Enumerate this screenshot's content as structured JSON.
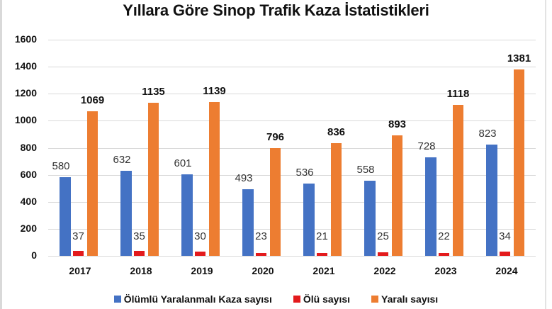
{
  "title": "Yıllara Göre Sinop Trafik Kaza İstatistikleri",
  "colors": {
    "blue": "#4472C4",
    "red": "#E31A1C",
    "orange": "#ED7D31"
  },
  "y_ticks": [
    "1600",
    "1400",
    "1200",
    "1000",
    "800",
    "600",
    "400",
    "200",
    "0"
  ],
  "categories": [
    "2017",
    "2018",
    "2019",
    "2020",
    "2021",
    "2022",
    "2023",
    "2024"
  ],
  "legend": [
    {
      "label": "Ölümlü Yaralanmalı Kaza sayısı",
      "color": "#4472C4"
    },
    {
      "label": "Ölü sayısı",
      "color": "#E31A1C"
    },
    {
      "label": "Yaralı sayısı",
      "color": "#ED7D31"
    }
  ],
  "chart_data": {
    "type": "bar",
    "title": "Yıllara Göre Sinop Trafik Kaza İstatistikleri",
    "xlabel": "",
    "ylabel": "",
    "ylim": [
      0,
      1600
    ],
    "y_ticks": [
      0,
      200,
      400,
      600,
      800,
      1000,
      1200,
      1400,
      1600
    ],
    "grid": true,
    "legend_position": "bottom",
    "categories": [
      "2017",
      "2018",
      "2019",
      "2020",
      "2021",
      "2022",
      "2023",
      "2024"
    ],
    "series": [
      {
        "name": "Ölümlü Yaralanmalı Kaza sayısı",
        "color": "#4472C4",
        "values": [
          580,
          632,
          601,
          493,
          536,
          558,
          728,
          823
        ]
      },
      {
        "name": "Ölü sayısı",
        "color": "#E31A1C",
        "values": [
          37,
          35,
          30,
          23,
          21,
          25,
          22,
          34
        ]
      },
      {
        "name": "Yaralı sayısı",
        "color": "#ED7D31",
        "values": [
          1069,
          1135,
          1139,
          796,
          836,
          893,
          1118,
          1381
        ]
      }
    ]
  }
}
